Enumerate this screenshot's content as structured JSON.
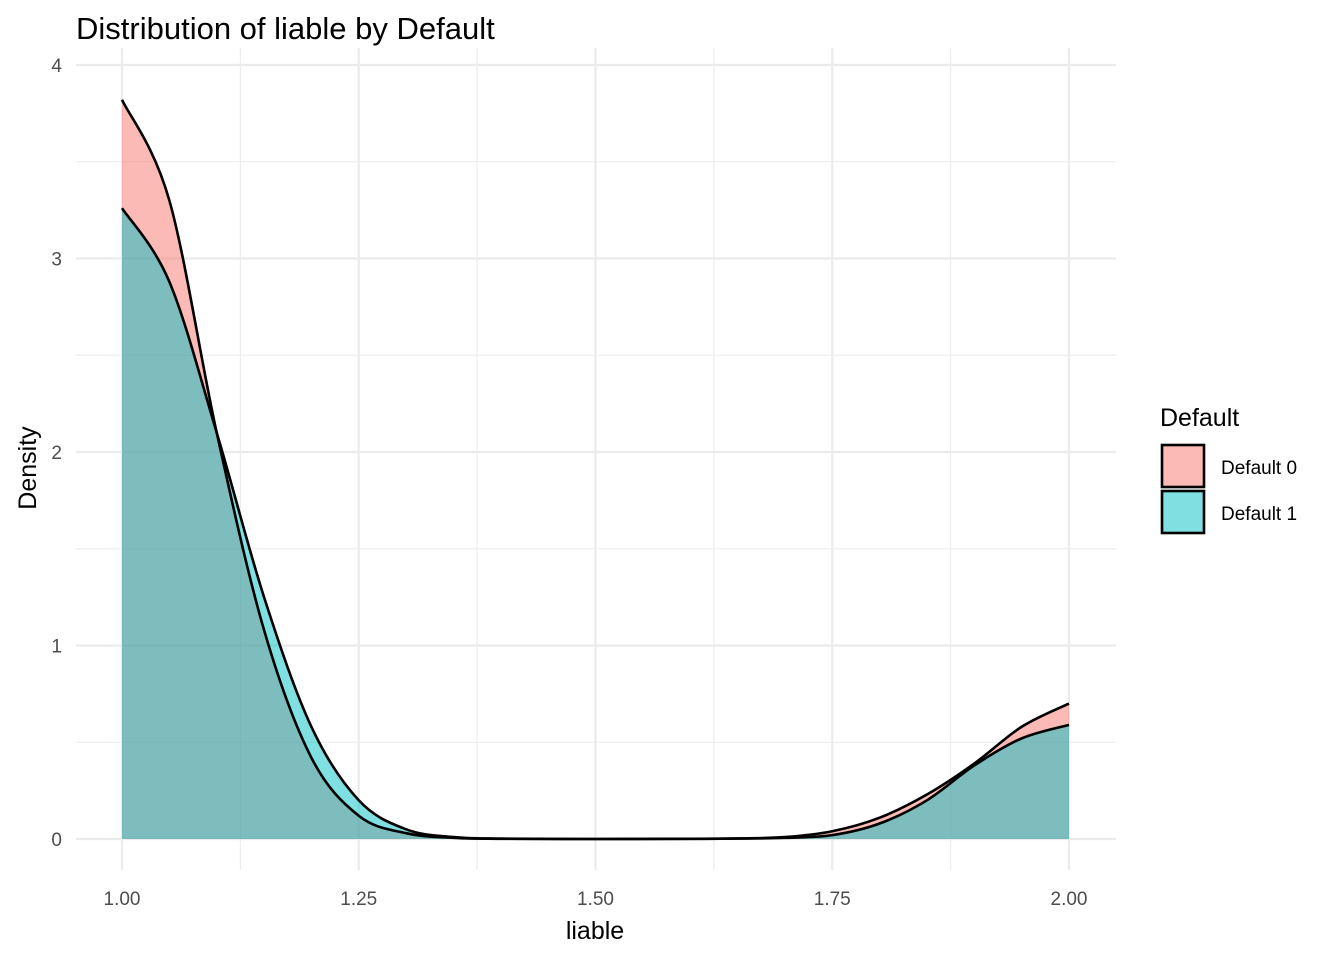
{
  "chart_data": {
    "type": "area",
    "title": "Distribution of liable by Default",
    "xlabel": "liable",
    "ylabel": "Density",
    "xlim": [
      1.0,
      2.0
    ],
    "ylim": [
      0,
      4
    ],
    "x_ticks": [
      "1.00",
      "1.25",
      "1.50",
      "1.75",
      "2.00"
    ],
    "x_tick_values": [
      1.0,
      1.25,
      1.5,
      1.75,
      2.0
    ],
    "y_ticks": [
      "0",
      "1",
      "2",
      "3",
      "4"
    ],
    "y_tick_values": [
      0,
      1,
      2,
      3,
      4
    ],
    "grid": true,
    "legend": {
      "title": "Default",
      "position": "right"
    },
    "series": [
      {
        "name": "Default 0",
        "color": "#f8766d",
        "x": [
          1.0,
          1.05,
          1.1,
          1.15,
          1.2,
          1.25,
          1.3,
          1.35,
          1.4,
          1.5,
          1.6,
          1.65,
          1.7,
          1.75,
          1.8,
          1.85,
          1.9,
          1.95,
          2.0
        ],
        "y": [
          3.82,
          3.3,
          2.1,
          1.08,
          0.42,
          0.12,
          0.03,
          0.006,
          0.001,
          0.0,
          0.001,
          0.003,
          0.01,
          0.04,
          0.11,
          0.23,
          0.39,
          0.58,
          0.7
        ]
      },
      {
        "name": "Default 1",
        "color": "#00bfc4",
        "x": [
          1.0,
          1.05,
          1.1,
          1.15,
          1.2,
          1.25,
          1.3,
          1.35,
          1.4,
          1.5,
          1.6,
          1.65,
          1.7,
          1.75,
          1.8,
          1.85,
          1.9,
          1.95,
          2.0
        ],
        "y": [
          3.26,
          2.88,
          2.1,
          1.25,
          0.58,
          0.2,
          0.05,
          0.01,
          0.002,
          0.0,
          0.001,
          0.002,
          0.006,
          0.02,
          0.08,
          0.2,
          0.38,
          0.52,
          0.59
        ]
      }
    ]
  }
}
